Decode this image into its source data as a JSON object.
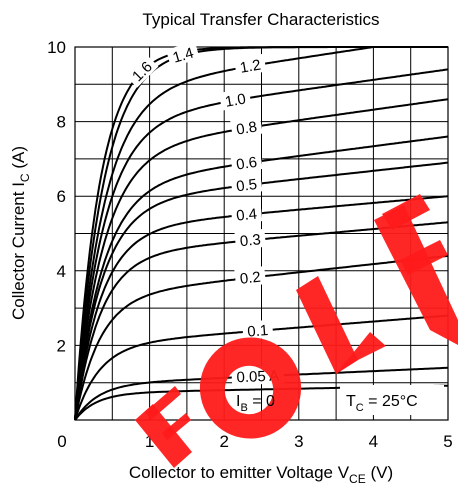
{
  "chart_data": {
    "type": "line",
    "title": "Typical Transfer Characteristics",
    "xlabel": "Collector to emitter Voltage  V",
    "xlabel_sub": "CE",
    "xlabel_unit": "  (V)",
    "ylabel": "Collector Current  I",
    "ylabel_sub": "C",
    "ylabel_unit": "  (A)",
    "xlim": [
      0,
      5
    ],
    "ylim": [
      0,
      10
    ],
    "x_ticks": [
      "0",
      "1",
      "2",
      "3",
      "4",
      "5"
    ],
    "y_ticks": [
      "2",
      "4",
      "6",
      "8",
      "10"
    ],
    "grid": true,
    "annotations": {
      "ib_zero": {
        "main": "I",
        "sub": "B",
        "rest": " = 0"
      },
      "tc": {
        "main": "T",
        "sub": "C",
        "rest": " = 25°C"
      }
    },
    "series": [
      {
        "label": "1.6",
        "sat": 10.0,
        "slope": 0,
        "knee": 0.33
      },
      {
        "label": "1.4",
        "sat": 10.0,
        "slope": 0,
        "knee": 0.38
      },
      {
        "label": "1.2",
        "sat": 8.8,
        "slope": 0.3,
        "knee": 0.38
      },
      {
        "label": "1.0",
        "sat": 8.0,
        "slope": 0.28,
        "knee": 0.38
      },
      {
        "label": "0.8",
        "sat": 7.2,
        "slope": 0.28,
        "knee": 0.38
      },
      {
        "label": "0.6",
        "sat": 6.3,
        "slope": 0.26,
        "knee": 0.37
      },
      {
        "label": "0.5",
        "sat": 5.8,
        "slope": 0.22,
        "knee": 0.36
      },
      {
        "label": "0.4",
        "sat": 5.1,
        "slope": 0.18,
        "knee": 0.35
      },
      {
        "label": "0.3",
        "sat": 4.4,
        "slope": 0.18,
        "knee": 0.34
      },
      {
        "label": "0.2",
        "sat": 3.3,
        "slope": 0.22,
        "knee": 0.33
      },
      {
        "label": "0.1",
        "sat": 2.0,
        "slope": 0.16,
        "knee": 0.32
      },
      {
        "label": "0.05 A",
        "sat": 0.95,
        "slope": 0.09,
        "knee": 0.3
      },
      {
        "label": "",
        "sat": 0.72,
        "slope": 0.04,
        "knee": 0.28
      }
    ]
  }
}
